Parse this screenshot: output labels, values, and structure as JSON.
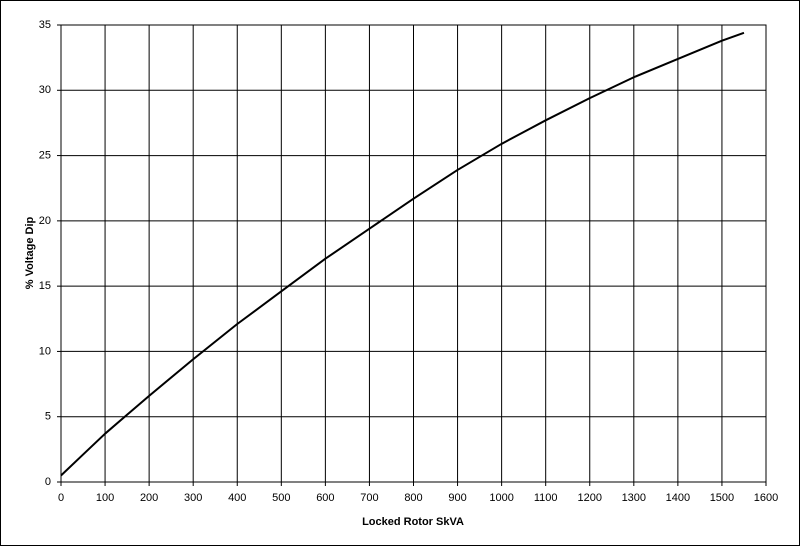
{
  "chart_data": {
    "type": "line",
    "x_label": "Locked Rotor SkVA",
    "y_label": "% Voltage Dip",
    "series": [
      {
        "name": "Voltage Dip",
        "color": "#000000",
        "x": [
          0,
          50,
          100,
          200,
          300,
          400,
          500,
          600,
          700,
          800,
          900,
          1000,
          1100,
          1200,
          1300,
          1400,
          1500,
          1550
        ],
        "values": [
          0.5,
          2.1,
          3.7,
          6.6,
          9.4,
          12.1,
          14.6,
          17.1,
          19.4,
          21.7,
          23.9,
          25.9,
          27.7,
          29.4,
          31.0,
          32.4,
          33.8,
          34.4
        ]
      }
    ],
    "xlim": [
      0,
      1600
    ],
    "xticks": [
      0,
      100,
      200,
      300,
      400,
      500,
      600,
      700,
      800,
      900,
      1000,
      1100,
      1200,
      1300,
      1400,
      1500,
      1600
    ],
    "ylim": [
      0,
      35
    ],
    "yticks": [
      0,
      5,
      10,
      15,
      20,
      25,
      30,
      35
    ],
    "grid": true
  }
}
